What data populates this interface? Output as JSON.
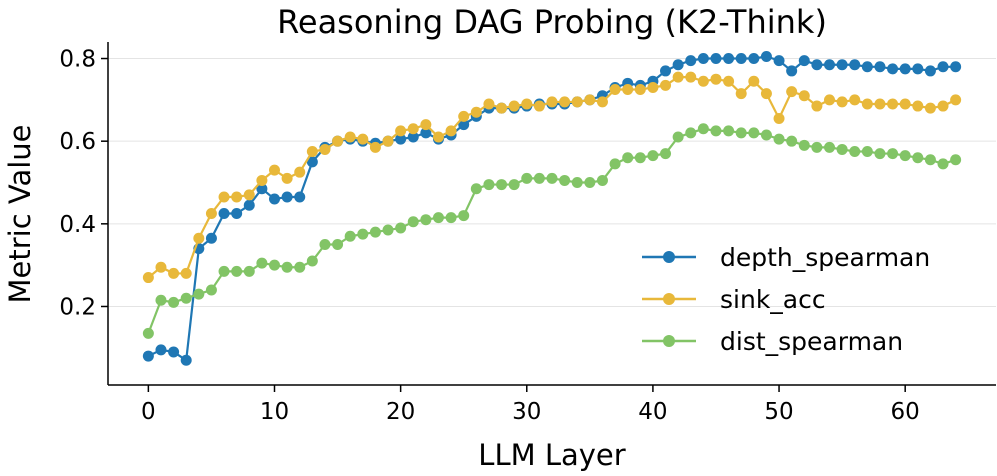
{
  "chart_data": {
    "type": "line",
    "title": "Reasoning DAG Probing (K2-Think)",
    "xlabel": "LLM Layer",
    "ylabel": "Metric Value",
    "xlim": [
      -3.2,
      67.2
    ],
    "ylim": [
      0.01,
      0.84
    ],
    "xticks": [
      0,
      10,
      20,
      30,
      40,
      50,
      60
    ],
    "yticks": [
      0.2,
      0.4,
      0.6,
      0.8
    ],
    "grid": "horizontal",
    "legend_position": "center-right",
    "x": [
      0,
      1,
      2,
      3,
      4,
      5,
      6,
      7,
      8,
      9,
      10,
      11,
      12,
      13,
      14,
      15,
      16,
      17,
      18,
      19,
      20,
      21,
      22,
      23,
      24,
      25,
      26,
      27,
      28,
      29,
      30,
      31,
      32,
      33,
      34,
      35,
      36,
      37,
      38,
      39,
      40,
      41,
      42,
      43,
      44,
      45,
      46,
      47,
      48,
      49,
      50,
      51,
      52,
      53,
      54,
      55,
      56,
      57,
      58,
      59,
      60,
      61,
      62,
      63,
      64
    ],
    "series": [
      {
        "name": "depth_spearman",
        "color": "#1f77b4",
        "values": [
          0.08,
          0.095,
          0.09,
          0.07,
          0.34,
          0.365,
          0.425,
          0.425,
          0.445,
          0.485,
          0.46,
          0.465,
          0.465,
          0.55,
          0.585,
          0.6,
          0.605,
          0.6,
          0.595,
          0.6,
          0.605,
          0.61,
          0.62,
          0.605,
          0.615,
          0.64,
          0.66,
          0.68,
          0.68,
          0.68,
          0.685,
          0.69,
          0.69,
          0.69,
          0.695,
          0.7,
          0.71,
          0.73,
          0.74,
          0.735,
          0.745,
          0.77,
          0.785,
          0.795,
          0.8,
          0.8,
          0.8,
          0.8,
          0.8,
          0.805,
          0.795,
          0.77,
          0.795,
          0.785,
          0.785,
          0.785,
          0.785,
          0.78,
          0.78,
          0.775,
          0.775,
          0.775,
          0.77,
          0.78,
          0.78
        ]
      },
      {
        "name": "sink_acc",
        "color": "#e8b83a",
        "values": [
          0.27,
          0.295,
          0.28,
          0.28,
          0.365,
          0.425,
          0.465,
          0.465,
          0.47,
          0.505,
          0.53,
          0.51,
          0.525,
          0.575,
          0.58,
          0.6,
          0.61,
          0.605,
          0.585,
          0.6,
          0.625,
          0.63,
          0.64,
          0.61,
          0.625,
          0.66,
          0.67,
          0.69,
          0.68,
          0.685,
          0.69,
          0.685,
          0.695,
          0.695,
          0.695,
          0.7,
          0.695,
          0.725,
          0.725,
          0.725,
          0.73,
          0.735,
          0.755,
          0.755,
          0.745,
          0.75,
          0.745,
          0.715,
          0.745,
          0.715,
          0.655,
          0.72,
          0.71,
          0.685,
          0.7,
          0.695,
          0.7,
          0.69,
          0.69,
          0.69,
          0.69,
          0.685,
          0.68,
          0.685,
          0.7
        ]
      },
      {
        "name": "dist_spearman",
        "color": "#82c466",
        "values": [
          0.135,
          0.215,
          0.21,
          0.22,
          0.23,
          0.24,
          0.285,
          0.285,
          0.285,
          0.305,
          0.3,
          0.295,
          0.295,
          0.31,
          0.35,
          0.35,
          0.37,
          0.375,
          0.38,
          0.385,
          0.39,
          0.405,
          0.41,
          0.415,
          0.415,
          0.42,
          0.485,
          0.495,
          0.495,
          0.495,
          0.51,
          0.51,
          0.51,
          0.505,
          0.5,
          0.5,
          0.505,
          0.545,
          0.56,
          0.56,
          0.565,
          0.57,
          0.61,
          0.62,
          0.63,
          0.625,
          0.625,
          0.62,
          0.62,
          0.615,
          0.605,
          0.6,
          0.59,
          0.585,
          0.585,
          0.58,
          0.575,
          0.575,
          0.57,
          0.57,
          0.565,
          0.56,
          0.555,
          0.545,
          0.555
        ]
      }
    ]
  }
}
